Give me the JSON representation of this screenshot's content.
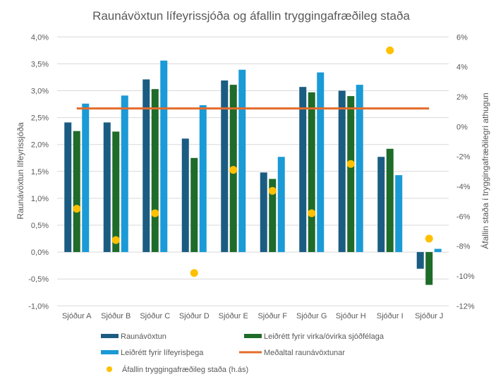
{
  "chart_data": {
    "type": "bar",
    "title": "Raunávöxtun lífeyrissjóða og áfallin tryggingafræðileg staða",
    "ylabel": "Raunávöxtun lífeyrissjóða",
    "y2label": "Áfallin staða í tryggingafræðilegri athugun",
    "ylim": [
      -1.0,
      4.0
    ],
    "y2lim": [
      -12,
      6
    ],
    "yticks": [
      "-1,0%",
      "-0,5%",
      "0,0%",
      "0,5%",
      "1,0%",
      "1,5%",
      "2,0%",
      "2,5%",
      "3,0%",
      "3,5%",
      "4,0%"
    ],
    "y2ticks": [
      "-12%",
      "-10%",
      "-8%",
      "-6%",
      "-4%",
      "-2%",
      "0%",
      "2%",
      "4%",
      "6%"
    ],
    "grid": true,
    "legend_position": "bottom",
    "categories": [
      "Sjóður A",
      "Sjóður B",
      "Sjóður C",
      "Sjóður D",
      "Sjóður E",
      "Sjóður F",
      "Sjóður G",
      "Sjóður H",
      "Sjóður I",
      "Sjóður J"
    ],
    "series": [
      {
        "name": "Raunávöxtun",
        "type": "bar",
        "axis": "left",
        "color": "#1b5c82",
        "values": [
          2.41,
          2.41,
          3.21,
          2.11,
          3.19,
          1.48,
          3.07,
          3.0,
          1.77,
          -0.31
        ]
      },
      {
        "name": "Leiðrétt fyrir virka/óvirka sjóðfélaga",
        "type": "bar",
        "axis": "left",
        "color": "#1e6b2a",
        "values": [
          2.25,
          2.24,
          3.03,
          1.75,
          3.11,
          1.36,
          2.97,
          2.9,
          1.92,
          -0.61
        ]
      },
      {
        "name": "Leiðrétt fyrir lífeyrisþega",
        "type": "bar",
        "axis": "left",
        "color": "#1a9ad6",
        "values": [
          2.76,
          2.91,
          3.56,
          2.73,
          3.39,
          1.77,
          3.34,
          3.11,
          1.43,
          0.06
        ]
      },
      {
        "name": "Meðaltal raunávöxtunar",
        "type": "line",
        "axis": "left",
        "color": "#e46c2b",
        "values": [
          2.67,
          2.67,
          2.67,
          2.67,
          2.67,
          2.67,
          2.67,
          2.67,
          2.67,
          2.67
        ]
      },
      {
        "name": "Áfallin tryggingafræðileg staða (h.ás)",
        "type": "scatter",
        "axis": "right",
        "color": "#ffc000",
        "values": [
          -5.5,
          -7.6,
          -5.8,
          -9.8,
          -2.9,
          -4.3,
          -5.8,
          -2.5,
          5.1,
          -7.5
        ]
      }
    ]
  }
}
